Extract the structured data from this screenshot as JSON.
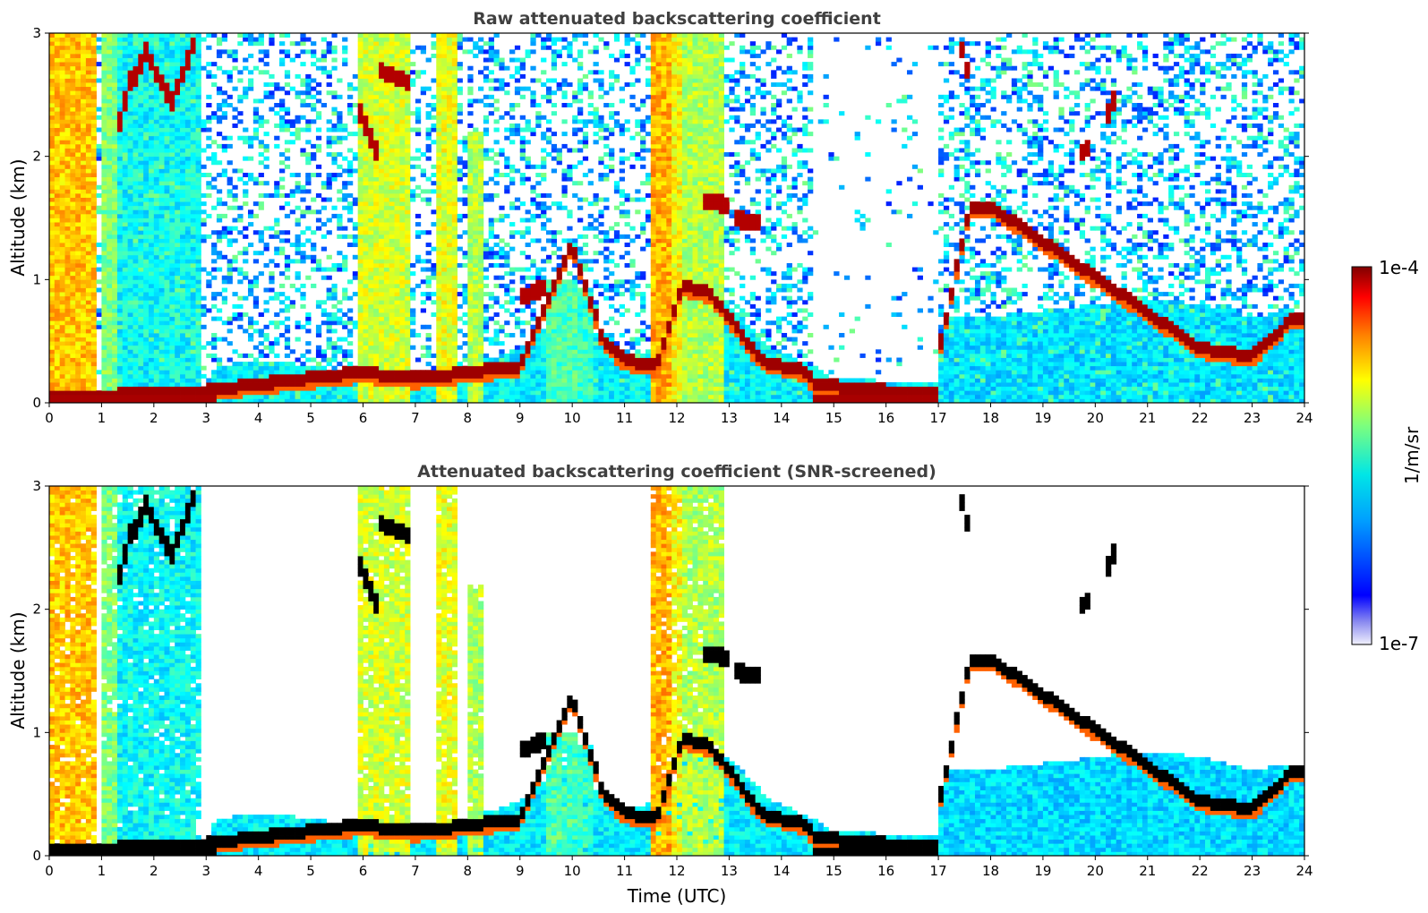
{
  "chart_data": [
    {
      "type": "heatmap",
      "title": "Raw attenuated backscattering coefficient",
      "xlabel": "",
      "ylabel": "Altitude (km)",
      "xlim": [
        0,
        24
      ],
      "ylim": [
        0,
        3
      ],
      "x_ticks": [
        "0",
        "1",
        "2",
        "3",
        "4",
        "5",
        "6",
        "7",
        "8",
        "9",
        "10",
        "11",
        "12",
        "13",
        "14",
        "15",
        "16",
        "17",
        "18",
        "19",
        "20",
        "21",
        "22",
        "23",
        "24"
      ],
      "y_ticks": [
        "0",
        "1",
        "2",
        "3"
      ],
      "screened": false,
      "features": [
        {
          "kind": "column",
          "t_start": 0.0,
          "t_end": 0.9,
          "alt_top": 3.0,
          "level": 0.68
        },
        {
          "kind": "column",
          "t_start": 5.9,
          "t_end": 6.9,
          "alt_top": 3.0,
          "level": 0.58
        },
        {
          "kind": "column",
          "t_start": 11.5,
          "t_end": 12.9,
          "alt_top": 3.0,
          "level": 0.55
        },
        {
          "kind": "surface_layer",
          "t_start": 14.6,
          "t_end": 17.0,
          "alt_top": 0.3,
          "level": 0.95
        },
        {
          "kind": "cloud_layer",
          "t_start": 22.0,
          "t_end": 23.8,
          "alt_top": 0.55,
          "level": 0.95
        },
        {
          "kind": "cirrus",
          "t_start": 1.3,
          "t_end": 2.8,
          "alt_top": 2.95,
          "level": 0.95
        },
        {
          "kind": "rising_layer",
          "t_start": 17.0,
          "t_end": 17.6,
          "alt_top": 1.7,
          "level": 0.95
        }
      ]
    },
    {
      "type": "heatmap",
      "title": "Attenuated backscattering coefficient (SNR-screened)",
      "xlabel": "Time (UTC)",
      "ylabel": "Altitude (km)",
      "xlim": [
        0,
        24
      ],
      "ylim": [
        0,
        3
      ],
      "x_ticks": [
        "0",
        "1",
        "2",
        "3",
        "4",
        "5",
        "6",
        "7",
        "8",
        "9",
        "10",
        "11",
        "12",
        "13",
        "14",
        "15",
        "16",
        "17",
        "18",
        "19",
        "20",
        "21",
        "22",
        "23",
        "24"
      ],
      "y_ticks": [
        "0",
        "1",
        "2",
        "3"
      ],
      "screened": true
    }
  ],
  "colorbar": {
    "label": "1/m/sr",
    "max_label": "1e-4",
    "min_label": "1e-7",
    "min_value": 1e-07,
    "max_value": 0.0001,
    "scale": "log",
    "colormap": "jet",
    "low_color": "#e8e8f8",
    "high_color": "#800000"
  }
}
